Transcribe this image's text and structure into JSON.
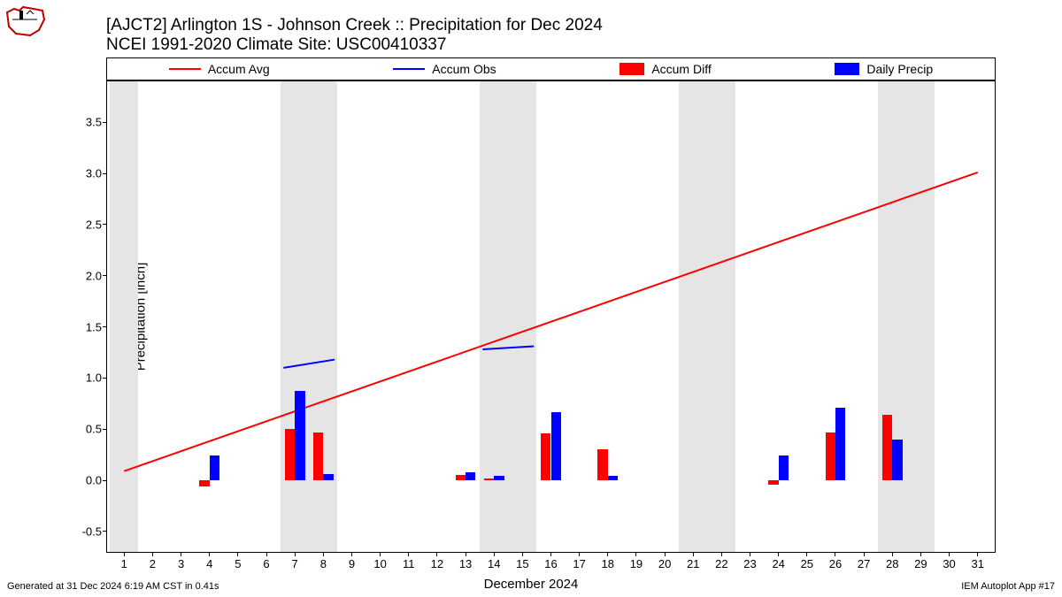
{
  "logo": {
    "stroke": "#c00000",
    "stroke_width": 2,
    "width": 48,
    "height": 38
  },
  "title": {
    "line1": "[AJCT2] Arlington 1S - Johnson Creek :: Precipitation for Dec 2024",
    "line2": "NCEI 1991-2020 Climate Site: USC00410337",
    "fontsize": 19
  },
  "legend": {
    "items": [
      {
        "label": "Accum Avg",
        "type": "line",
        "color": "#ff0000"
      },
      {
        "label": "Accum Obs",
        "type": "line",
        "color": "#0000ff"
      },
      {
        "label": "Accum Diff",
        "type": "patch",
        "color": "#ff0000"
      },
      {
        "label": "Daily Precip",
        "type": "patch",
        "color": "#0000ff"
      }
    ],
    "fontsize": 14
  },
  "chart": {
    "xlabel": "December 2024",
    "ylabel": "Precipitation [inch]",
    "label_fontsize": 15,
    "tick_fontsize": 13,
    "xlim": [
      0.4,
      31.6
    ],
    "ylim": [
      -0.7,
      3.9
    ],
    "yticks": [
      -0.5,
      0.0,
      0.5,
      1.0,
      1.5,
      2.0,
      2.5,
      3.0,
      3.5
    ],
    "xticks": [
      1,
      2,
      3,
      4,
      5,
      6,
      7,
      8,
      9,
      10,
      11,
      12,
      13,
      14,
      15,
      16,
      17,
      18,
      19,
      20,
      21,
      22,
      23,
      24,
      25,
      26,
      27,
      28,
      29,
      30,
      31
    ],
    "weekend_shade_days": [
      1.0,
      7.0,
      8.0,
      14.0,
      15.0,
      21.0,
      22.0,
      28.0,
      29.0
    ],
    "shade_color": "#e5e5e5",
    "background": "#ffffff",
    "accum_avg": {
      "color": "#ff0000",
      "line_width": 2,
      "x": [
        1,
        31
      ],
      "y": [
        0.09,
        3.01
      ]
    },
    "accum_obs": {
      "color": "#0000ff",
      "line_width": 2,
      "segments": [
        {
          "x": [
            6.6,
            8.4
          ],
          "y": [
            1.1,
            1.18
          ]
        },
        {
          "x": [
            13.6,
            15.4
          ],
          "y": [
            1.28,
            1.31
          ]
        }
      ]
    },
    "accum_diff": {
      "color": "#ff0000",
      "bar_offset": -0.18,
      "bar_width": 0.35,
      "points": [
        {
          "x": 4,
          "y": -0.06
        },
        {
          "x": 7,
          "y": 0.5
        },
        {
          "x": 8,
          "y": 0.47
        },
        {
          "x": 13,
          "y": 0.05
        },
        {
          "x": 14,
          "y": 0.02
        },
        {
          "x": 16,
          "y": 0.46
        },
        {
          "x": 18,
          "y": 0.3
        },
        {
          "x": 24,
          "y": -0.04
        },
        {
          "x": 26,
          "y": 0.47
        },
        {
          "x": 28,
          "y": 0.64
        }
      ]
    },
    "daily_precip": {
      "color": "#0000ff",
      "bar_offset": 0.18,
      "bar_width": 0.35,
      "points": [
        {
          "x": 4,
          "y": 0.24
        },
        {
          "x": 7,
          "y": 0.87
        },
        {
          "x": 8,
          "y": 0.06
        },
        {
          "x": 13,
          "y": 0.08
        },
        {
          "x": 14,
          "y": 0.04
        },
        {
          "x": 16,
          "y": 0.67
        },
        {
          "x": 18,
          "y": 0.04
        },
        {
          "x": 24,
          "y": 0.24
        },
        {
          "x": 26,
          "y": 0.71
        },
        {
          "x": 28,
          "y": 0.4
        }
      ]
    }
  },
  "footer": {
    "left": "Generated at 31 Dec 2024 6:19 AM CST in 0.41s",
    "right": "IEM Autoplot App #17",
    "fontsize": 11
  }
}
